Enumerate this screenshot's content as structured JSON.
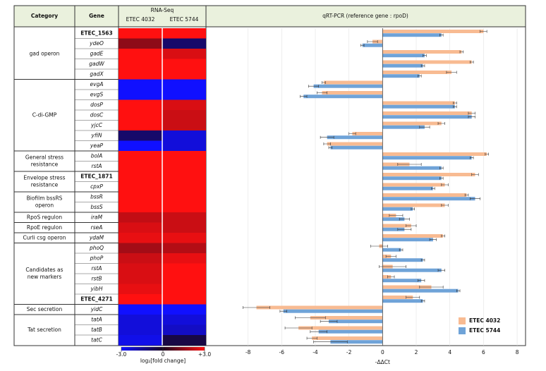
{
  "headers": {
    "category": "Category",
    "gene": "Gene",
    "rnaseq": "RNA-Seq"
  },
  "groups": [
    {
      "label": [
        "gad operon"
      ],
      "genes": [
        "ETEC_1563",
        "ydeO",
        "gadE",
        "gadW",
        "gadX"
      ]
    },
    {
      "label": [
        "C-di-GMP"
      ],
      "genes": [
        "evgA",
        "evgS",
        "dosP",
        "dosC",
        "yjcC",
        "yfiN",
        "yeaP"
      ]
    },
    {
      "label": [
        "General stress",
        "resistance"
      ],
      "genes": [
        "bolA",
        "rstA"
      ]
    },
    {
      "label": [
        "Envelope stress",
        "resistance"
      ],
      "genes": [
        "ETEC_1871",
        "cpxP"
      ]
    },
    {
      "label": [
        "Biofilm bssRS",
        "operon"
      ],
      "genes": [
        "bssR",
        "bssS"
      ]
    },
    {
      "label": [
        "RpoS regulon"
      ],
      "genes": [
        "iraM"
      ]
    },
    {
      "label": [
        "RpoE regulon"
      ],
      "genes": [
        "rseA"
      ]
    },
    {
      "label": [
        "Curli csg operon"
      ],
      "genes": [
        "ydaM"
      ]
    },
    {
      "label": [
        "Candidates as",
        "new markers"
      ],
      "genes": [
        "phoQ",
        "phoP",
        "rstA",
        "rstB",
        "yibH",
        "ETEC_4271"
      ]
    },
    {
      "label": [
        "Sec secretion"
      ],
      "genes": [
        "yidC"
      ]
    },
    {
      "label": [
        "Tat secretion"
      ],
      "genes": [
        "tatA",
        "tatB",
        "tatC"
      ]
    }
  ],
  "chart_data": [
    {
      "type": "heatmap",
      "series": [
        {
          "name": "ETEC 4032",
          "values": [
            3,
            1.5,
            3,
            3,
            3,
            -3,
            -3,
            3,
            3,
            3,
            -1,
            -3,
            3,
            3,
            3,
            3,
            3,
            3,
            2.2,
            2.5,
            2.7,
            1.8,
            2.3,
            2.5,
            2.5,
            2.7,
            3,
            -3,
            -2.5,
            -2.5,
            -2.7
          ]
        },
        {
          "name": "ETEC 5744",
          "values": [
            3,
            -1,
            2.5,
            3,
            3,
            -3,
            -3,
            2.5,
            2.3,
            2.3,
            -2.5,
            -2.5,
            3,
            3,
            3,
            3,
            3,
            3,
            2.3,
            2.3,
            2.7,
            2,
            2.7,
            3,
            3,
            3,
            3,
            -3,
            -2.5,
            -2.2,
            -0.5
          ]
        }
      ],
      "clim": [
        -3,
        3
      ],
      "colors": [
        "#1010ff",
        "#1a0620",
        "#ff1010"
      ],
      "cticks": [
        {
          "value": -3,
          "label": "-3.0"
        },
        0,
        {
          "value": 3,
          "label": "+3.0"
        }
      ],
      "colorbar_label": "log₂[fold change]"
    },
    {
      "type": "hbar",
      "title": "qRT-PCR (reference gene : rpoD)",
      "xlabel": "-ΔΔCt",
      "xlim": [
        -10.5,
        8.5
      ],
      "xticks": [
        -8,
        -6,
        -4,
        -2,
        0,
        2,
        4,
        6,
        8
      ],
      "grid": true,
      "legend": "lower right",
      "series": [
        {
          "name": "ETEC 4032",
          "color": "#f8bb92",
          "values": [
            6.0,
            -0.6,
            4.7,
            5.3,
            4.1,
            -3.5,
            -3.6,
            4.3,
            5.3,
            3.5,
            -1.8,
            -3.3,
            6.2,
            1.6,
            5.5,
            3.7,
            5.0,
            3.7,
            0.8,
            1.7,
            3.6,
            -0.2,
            0.5,
            0.6,
            0.5,
            2.9,
            1.8,
            -7.5,
            -4.3,
            -5.0,
            -4.2
          ],
          "errors": [
            0.2,
            0.3,
            0.1,
            0.1,
            0.3,
            0.1,
            0.3,
            0.1,
            0.2,
            0.2,
            0.2,
            0.2,
            0.1,
            0.7,
            0.2,
            0.2,
            0.1,
            0.2,
            0.4,
            0.3,
            0.1,
            0.5,
            0.3,
            0.8,
            0.2,
            0.7,
            0.4,
            0.8,
            0.9,
            0.8,
            0.3
          ]
        },
        {
          "name": "ETEC 5744",
          "color": "#6fa3d8",
          "values": [
            3.5,
            -1.2,
            2.5,
            2.4,
            2.2,
            -4.1,
            -4.7,
            4.3,
            5.3,
            2.5,
            -3.3,
            -3.1,
            5.3,
            3.5,
            3.5,
            3.0,
            5.5,
            1.8,
            1.3,
            1.3,
            3.0,
            1.1,
            2.4,
            3.5,
            2.3,
            4.5,
            2.4,
            -5.9,
            -3.2,
            -3.8,
            -3.1
          ],
          "errors": [
            0.1,
            0.1,
            0.1,
            0.1,
            0.1,
            0.3,
            0.2,
            0.1,
            0.2,
            0.3,
            0.4,
            0.1,
            0.1,
            0.1,
            0.1,
            0.1,
            0.3,
            0.1,
            0.3,
            0.4,
            0.2,
            0.1,
            0.1,
            0.2,
            0.2,
            0.1,
            0.1,
            0.2,
            0.5,
            0.5,
            1.0
          ]
        }
      ]
    }
  ]
}
